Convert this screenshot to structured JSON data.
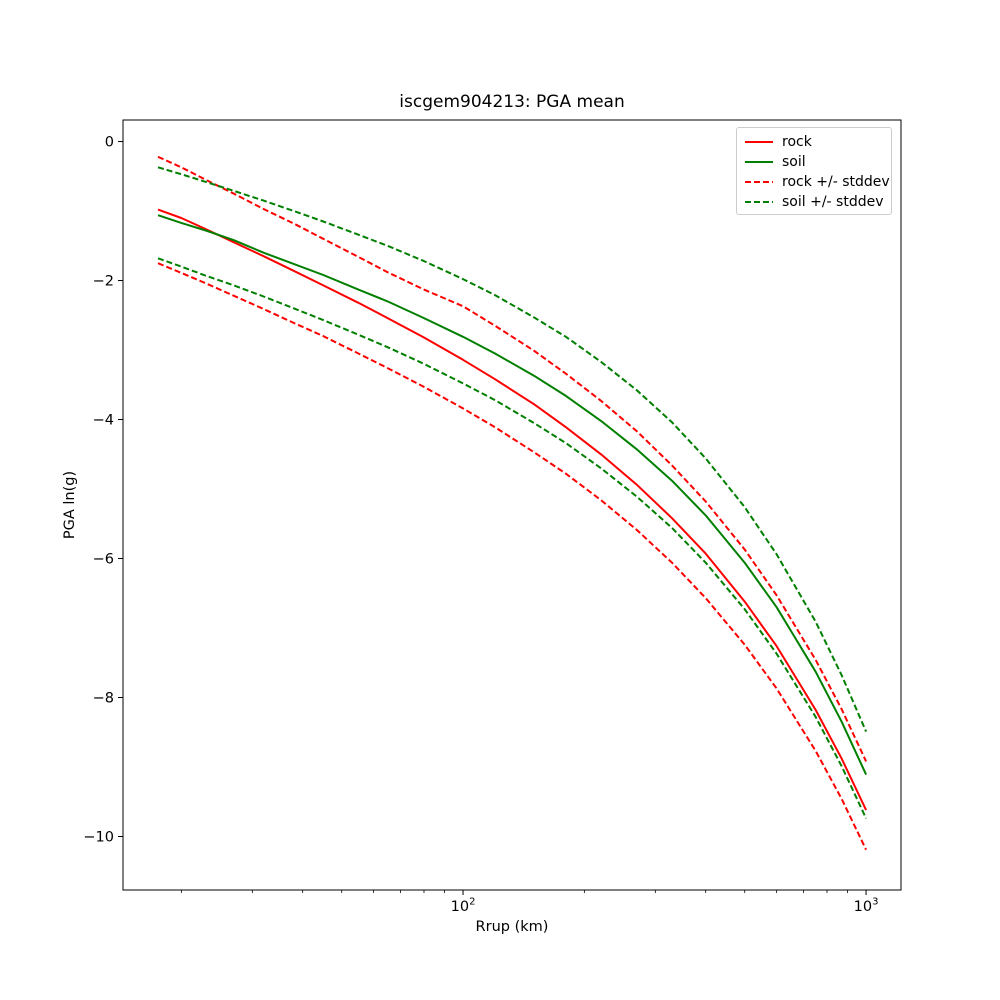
{
  "window": {
    "background": "#ffffff"
  },
  "colors": {
    "rock": "#ff0000",
    "soil": "#007f00",
    "spine": "#000000",
    "legend_edge": "#cccccc"
  },
  "legend": {
    "entries": [
      {
        "label": "rock",
        "color": "#ff0000",
        "style": "solid"
      },
      {
        "label": "soil",
        "color": "#007f00",
        "style": "solid"
      },
      {
        "label": "rock +/- stddev",
        "color": "#ff0000",
        "style": "dashed"
      },
      {
        "label": "soil +/- stddev",
        "color": "#007f00",
        "style": "dashed"
      }
    ]
  },
  "chart_data": {
    "type": "line",
    "title": "iscgem904213: PGA mean",
    "xlabel": "Rrup (km)",
    "ylabel": "PGA ln(g)",
    "xscale": "log",
    "yscale": "linear",
    "grid": false,
    "legend_position": "upper right",
    "xlim": [
      14.33,
      1221
    ],
    "ylim": [
      -10.77,
      0.31
    ],
    "x_major_ticks": [
      {
        "value": 100,
        "base": "10",
        "exp": "2"
      },
      {
        "value": 1000,
        "base": "10",
        "exp": "3"
      }
    ],
    "x_minor_ticks": [
      20,
      30,
      40,
      50,
      60,
      70,
      80,
      90,
      200,
      300,
      400,
      500,
      600,
      700,
      800,
      900
    ],
    "y_ticks": [
      {
        "value": 0,
        "label": "0"
      },
      {
        "value": -2,
        "label": "−2"
      },
      {
        "value": -4,
        "label": "−4"
      },
      {
        "value": -6,
        "label": "−6"
      },
      {
        "value": -8,
        "label": "−8"
      },
      {
        "value": -10,
        "label": "−10"
      }
    ],
    "x": [
      17.5,
      20,
      23,
      27,
      32,
      38,
      45,
      55,
      65,
      80,
      100,
      120,
      150,
      180,
      220,
      270,
      330,
      400,
      500,
      600,
      750,
      870,
      1000
    ],
    "series": [
      {
        "name": "rock",
        "color": "#ff0000",
        "style": "solid",
        "values": [
          -0.98,
          -1.1,
          -1.26,
          -1.45,
          -1.65,
          -1.86,
          -2.07,
          -2.32,
          -2.54,
          -2.82,
          -3.14,
          -3.42,
          -3.78,
          -4.11,
          -4.5,
          -4.94,
          -5.42,
          -5.93,
          -6.62,
          -7.26,
          -8.18,
          -8.88,
          -9.62
        ]
      },
      {
        "name": "soil",
        "color": "#007f00",
        "style": "solid",
        "values": [
          -1.06,
          -1.17,
          -1.28,
          -1.42,
          -1.6,
          -1.76,
          -1.92,
          -2.13,
          -2.3,
          -2.54,
          -2.81,
          -3.05,
          -3.37,
          -3.66,
          -4.02,
          -4.43,
          -4.88,
          -5.38,
          -6.06,
          -6.7,
          -7.63,
          -8.35,
          -9.11
        ]
      },
      {
        "name": "rock_plus_stddev",
        "color": "#ff0000",
        "style": "dashed",
        "values": [
          -0.22,
          -0.37,
          -0.55,
          -0.75,
          -0.97,
          -1.18,
          -1.4,
          -1.66,
          -1.88,
          -2.13,
          -2.37,
          -2.65,
          -3.01,
          -3.34,
          -3.73,
          -4.17,
          -4.66,
          -5.18,
          -5.87,
          -6.53,
          -7.46,
          -8.17,
          -8.92
        ]
      },
      {
        "name": "rock_minus_stddev",
        "color": "#ff0000",
        "style": "dashed",
        "values": [
          -1.75,
          -1.89,
          -2.04,
          -2.22,
          -2.41,
          -2.61,
          -2.8,
          -3.05,
          -3.26,
          -3.53,
          -3.84,
          -4.11,
          -4.47,
          -4.78,
          -5.16,
          -5.59,
          -6.06,
          -6.57,
          -7.24,
          -7.87,
          -8.77,
          -9.46,
          -10.19
        ]
      },
      {
        "name": "soil_plus_stddev",
        "color": "#007f00",
        "style": "dashed",
        "values": [
          -0.37,
          -0.47,
          -0.58,
          -0.71,
          -0.85,
          -1.0,
          -1.15,
          -1.34,
          -1.5,
          -1.72,
          -1.98,
          -2.21,
          -2.53,
          -2.81,
          -3.17,
          -3.58,
          -4.04,
          -4.56,
          -5.26,
          -5.94,
          -6.91,
          -7.68,
          -8.49
        ]
      },
      {
        "name": "soil_minus_stddev",
        "color": "#007f00",
        "style": "dashed",
        "values": [
          -1.68,
          -1.8,
          -1.93,
          -2.07,
          -2.23,
          -2.4,
          -2.57,
          -2.78,
          -2.96,
          -3.2,
          -3.48,
          -3.72,
          -4.05,
          -4.34,
          -4.7,
          -5.11,
          -5.56,
          -6.06,
          -6.73,
          -7.37,
          -8.28,
          -8.99,
          -9.74
        ]
      }
    ]
  }
}
